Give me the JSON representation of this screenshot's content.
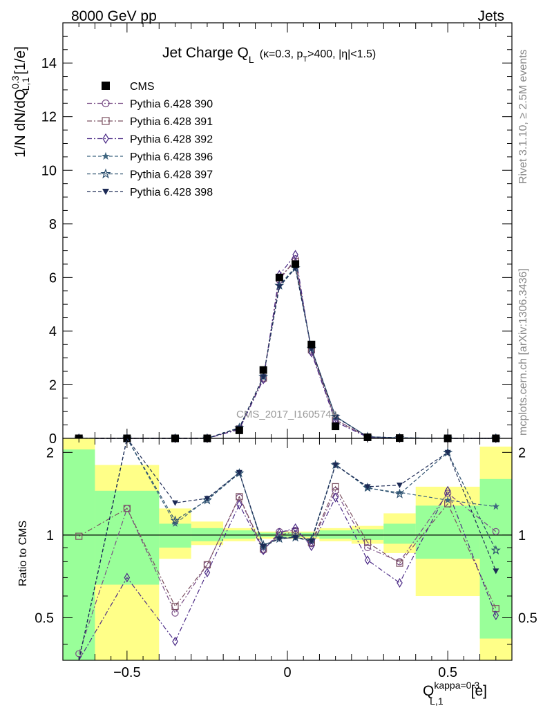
{
  "header": {
    "left": "8000 GeV pp",
    "right": "Jets"
  },
  "side": {
    "top": "Rivet 3.1.10, ≥ 2.5M events",
    "bottom": "mcplots.cern.ch [arXiv:1306.3436]"
  },
  "watermark": "CMS_2017_I1605749",
  "colors": {
    "data": "#000000",
    "s390": "#7a4e86",
    "s391": "#7b5060",
    "s392": "#4b2a86",
    "s396": "#3f6680",
    "s397": "#2c4f6e",
    "s398": "#1c2a55",
    "band_inner": "#99ff99",
    "band_outer": "#ffff88"
  },
  "chart_data": [
    {
      "type": "line",
      "title": "Jet Charge Q",
      "title_sub": "L",
      "title_cond": "(κ=0.3, p",
      "title_cond_sub": "T",
      "title_cond_end": ">400, |η|<1.5)",
      "ylabel": "1/N dN/dQ",
      "ylabel_sup": "0.3",
      "ylabel_sub": "L,1",
      "ylabel_unit": "[1/e]",
      "xlim": [
        -0.7,
        0.7
      ],
      "ylim": [
        0,
        15.5
      ],
      "yticks": [
        0,
        2,
        4,
        6,
        8,
        10,
        12,
        14
      ],
      "yticklabels": [
        "0",
        "2",
        "4",
        "6",
        "8",
        "10",
        "12",
        "14"
      ],
      "legend_position": "top-left",
      "x": [
        -0.65,
        -0.5,
        -0.35,
        -0.25,
        -0.15,
        -0.075,
        -0.025,
        0.025,
        0.075,
        0.15,
        0.25,
        0.35,
        0.5,
        0.65
      ],
      "data": {
        "name": "CMS",
        "values": [
          0.0,
          0.0,
          0.0,
          0.0,
          0.3,
          2.55,
          6.0,
          6.5,
          3.5,
          0.45,
          0.04,
          0.01,
          0.0,
          0.0
        ]
      },
      "series": [
        {
          "name": "Pythia 6.428 390",
          "marker": "circle-open",
          "dash": "dashdot",
          "values": [
            0.0,
            0.0,
            0.0,
            0.0,
            0.35,
            2.2,
            5.9,
            6.7,
            3.25,
            0.7,
            0.05,
            0.01,
            0.0,
            0.0
          ]
        },
        {
          "name": "Pythia 6.428 391",
          "marker": "square-open",
          "dash": "dashdot",
          "values": [
            0.0,
            0.0,
            0.0,
            0.0,
            0.35,
            2.25,
            6.0,
            6.6,
            3.3,
            0.68,
            0.05,
            0.01,
            0.0,
            0.0
          ]
        },
        {
          "name": "Pythia 6.428 392",
          "marker": "diamond-open",
          "dash": "dashdot",
          "values": [
            0.0,
            0.0,
            0.0,
            0.0,
            0.33,
            2.2,
            6.1,
            6.85,
            3.2,
            0.62,
            0.04,
            0.01,
            0.0,
            0.0
          ]
        },
        {
          "name": "Pythia 6.428 396",
          "marker": "star-filled",
          "dash": "dashed",
          "values": [
            0.0,
            0.0,
            0.0,
            0.0,
            0.4,
            2.3,
            5.7,
            6.4,
            3.35,
            0.82,
            0.06,
            0.02,
            0.0,
            0.0
          ]
        },
        {
          "name": "Pythia 6.428 397",
          "marker": "star-open",
          "dash": "dashed",
          "values": [
            0.0,
            0.0,
            0.0,
            0.0,
            0.4,
            2.3,
            5.7,
            6.35,
            3.35,
            0.82,
            0.06,
            0.02,
            0.0,
            0.0
          ]
        },
        {
          "name": "Pythia 6.428 398",
          "marker": "triangle-down-filled",
          "dash": "dashed",
          "values": [
            0.0,
            0.0,
            0.0,
            0.0,
            0.38,
            2.3,
            5.65,
            6.35,
            3.35,
            0.8,
            0.06,
            0.02,
            0.0,
            0.0
          ]
        }
      ]
    },
    {
      "type": "line",
      "ylabel": "Ratio to CMS",
      "xlabel": "Q",
      "xlabel_sup": "kappa=0.3",
      "xlabel_sub": "L,1",
      "xlabel_unit": "[e]",
      "xlim": [
        -0.7,
        0.7
      ],
      "ylim": [
        0.35,
        2.25
      ],
      "xticks": [
        -0.5,
        0,
        0.5
      ],
      "xticklabels": [
        "−0.5",
        "0",
        "0.5"
      ],
      "yticks": [
        0.5,
        1,
        2
      ],
      "yticklabels": [
        "0.5",
        "1",
        "2"
      ],
      "bands": [
        {
          "x0": -0.7,
          "x1": -0.6,
          "inner": [
            0.35,
            2.05
          ],
          "outer": [
            0.35,
            2.25
          ]
        },
        {
          "x0": -0.6,
          "x1": -0.4,
          "inner": [
            0.66,
            1.45
          ],
          "outer": [
            0.35,
            1.8
          ]
        },
        {
          "x0": -0.4,
          "x1": -0.3,
          "inner": [
            0.9,
            1.1
          ],
          "outer": [
            0.82,
            1.25
          ]
        },
        {
          "x0": -0.3,
          "x1": -0.2,
          "inner": [
            0.95,
            1.06
          ],
          "outer": [
            0.92,
            1.12
          ]
        },
        {
          "x0": -0.2,
          "x1": -0.1,
          "inner": [
            0.97,
            1.04
          ],
          "outer": [
            0.95,
            1.06
          ]
        },
        {
          "x0": -0.1,
          "x1": 0.1,
          "inner": [
            0.985,
            1.02
          ],
          "outer": [
            0.97,
            1.03
          ]
        },
        {
          "x0": 0.1,
          "x1": 0.2,
          "inner": [
            0.97,
            1.04
          ],
          "outer": [
            0.95,
            1.06
          ]
        },
        {
          "x0": 0.2,
          "x1": 0.3,
          "inner": [
            0.96,
            1.05
          ],
          "outer": [
            0.93,
            1.08
          ]
        },
        {
          "x0": 0.3,
          "x1": 0.4,
          "inner": [
            0.93,
            1.1
          ],
          "outer": [
            0.86,
            1.2
          ]
        },
        {
          "x0": 0.4,
          "x1": 0.6,
          "inner": [
            0.82,
            1.28
          ],
          "outer": [
            0.6,
            1.5
          ]
        },
        {
          "x0": 0.6,
          "x1": 0.7,
          "inner": [
            0.42,
            1.6
          ],
          "outer": [
            0.35,
            2.1
          ]
        }
      ],
      "x": [
        -0.65,
        -0.5,
        -0.35,
        -0.25,
        -0.15,
        -0.075,
        -0.025,
        0.025,
        0.075,
        0.15,
        0.25,
        0.35,
        0.5,
        0.65
      ],
      "series": [
        {
          "name": "Pythia 6.428 390",
          "values": [
            0.37,
            1.25,
            0.52,
            0.78,
            1.37,
            0.88,
            1.03,
            1.04,
            0.93,
            1.45,
            0.9,
            0.8,
            1.42,
            1.03
          ]
        },
        {
          "name": "Pythia 6.428 391",
          "values": [
            0.99,
            1.25,
            0.55,
            0.78,
            1.38,
            0.89,
            1.0,
            1.03,
            0.94,
            1.5,
            0.94,
            0.79,
            1.3,
            0.54
          ]
        },
        {
          "name": "Pythia 6.428 392",
          "values": [
            0.26,
            0.7,
            0.41,
            0.73,
            1.29,
            0.88,
            1.02,
            1.06,
            0.91,
            1.37,
            0.81,
            0.67,
            1.45,
            0.51
          ]
        },
        {
          "name": "Pythia 6.428 396",
          "values": [
            0.26,
            2.3,
            1.1,
            1.35,
            1.69,
            0.9,
            0.98,
            0.98,
            0.96,
            1.81,
            1.48,
            1.43,
            1.34,
            1.27
          ]
        },
        {
          "name": "Pythia 6.428 397",
          "values": [
            0.26,
            2.28,
            1.13,
            1.34,
            1.68,
            0.92,
            0.97,
            0.98,
            0.96,
            1.8,
            1.49,
            1.41,
            2.0,
            0.88
          ]
        },
        {
          "name": "Pythia 6.428 398",
          "values": [
            0.26,
            2.27,
            1.31,
            1.36,
            1.69,
            0.91,
            0.97,
            0.98,
            0.95,
            1.8,
            1.5,
            1.52,
            2.0,
            0.74
          ]
        }
      ]
    }
  ]
}
